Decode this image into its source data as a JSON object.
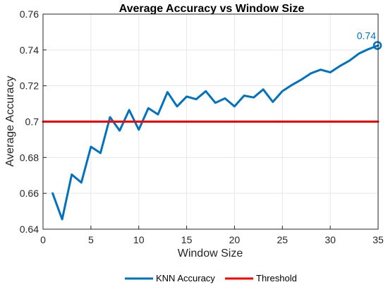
{
  "chart_data": {
    "type": "line",
    "title": "Average Accuracy vs Window Size",
    "xlabel": "Window Size",
    "ylabel": "Average Accuracy",
    "xlim": [
      0,
      35
    ],
    "ylim": [
      0.64,
      0.76
    ],
    "xticks": [
      0,
      5,
      10,
      15,
      20,
      25,
      30,
      35
    ],
    "yticks": [
      0.64,
      0.66,
      0.68,
      0.7,
      0.72,
      0.74,
      0.76
    ],
    "xtick_labels": [
      "0",
      "5",
      "10",
      "15",
      "20",
      "25",
      "30",
      "35"
    ],
    "ytick_labels": [
      "0.64",
      "0.66",
      "0.68",
      "0.7",
      "0.72",
      "0.74",
      "0.76"
    ],
    "grid": true,
    "legend_position": "bottom",
    "series": [
      {
        "name": "KNN Accuracy",
        "color": "#0072BD",
        "x": [
          1,
          2,
          3,
          4,
          5,
          6,
          7,
          8,
          9,
          10,
          11,
          12,
          13,
          14,
          15,
          16,
          17,
          18,
          19,
          20,
          21,
          22,
          23,
          24,
          25,
          26,
          27,
          28,
          29,
          30,
          31,
          32,
          33,
          34,
          35
        ],
        "y": [
          0.66,
          0.6455,
          0.6705,
          0.666,
          0.686,
          0.6825,
          0.7025,
          0.695,
          0.7065,
          0.6955,
          0.7075,
          0.704,
          0.7165,
          0.7085,
          0.714,
          0.7125,
          0.717,
          0.7105,
          0.713,
          0.7085,
          0.7145,
          0.7135,
          0.718,
          0.711,
          0.717,
          0.7205,
          0.7235,
          0.727,
          0.729,
          0.7275,
          0.731,
          0.734,
          0.738,
          0.7405,
          0.7425
        ]
      },
      {
        "name": "Threshold",
        "color": "#FF0000",
        "x": [
          0,
          35
        ],
        "y": [
          0.7,
          0.7
        ]
      }
    ],
    "annotations": [
      {
        "text": "0.74",
        "x": 35,
        "y": 0.7425,
        "marker": "circle",
        "color": "#0072BD"
      }
    ]
  }
}
